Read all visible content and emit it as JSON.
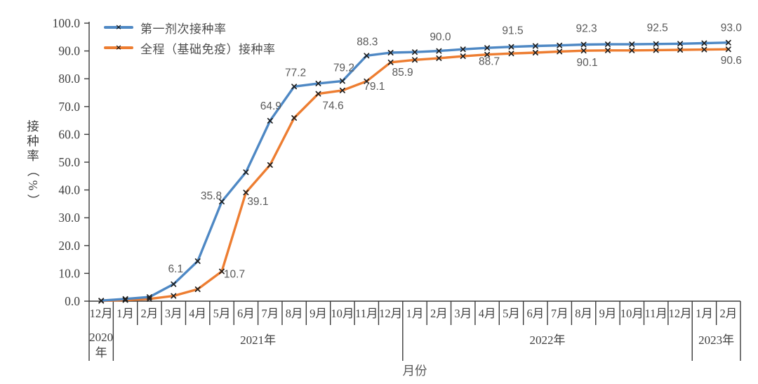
{
  "colors": {
    "series1": "#4e88c4",
    "series2": "#ed7d31",
    "marker": "#1f1f1f",
    "label_text": "#595959",
    "axis_text": "#404040",
    "axis_line": "#3a3a3a"
  },
  "chart_data": {
    "type": "line",
    "title": "",
    "xlabel": "月份",
    "ylabel": "接种率（%）",
    "ylim": [
      0,
      100
    ],
    "yticks": [
      "0.0",
      "10.0",
      "20.0",
      "30.0",
      "40.0",
      "50.0",
      "60.0",
      "70.0",
      "80.0",
      "90.0",
      "100.0"
    ],
    "grid": false,
    "legend_position": "top-left",
    "categories": [
      "12月",
      "1月",
      "2月",
      "3月",
      "4月",
      "5月",
      "6月",
      "7月",
      "8月",
      "9月",
      "10月",
      "11月",
      "12月",
      "1月",
      "2月",
      "3月",
      "4月",
      "5月",
      "6月",
      "7月",
      "8月",
      "9月",
      "10月",
      "11月",
      "12月",
      "1月",
      "2月"
    ],
    "year_groups": [
      {
        "label": "2020年",
        "label_lines": [
          "2020",
          "年"
        ],
        "start": 0,
        "end": 0
      },
      {
        "label": "2021年",
        "label_lines": [
          "2021年"
        ],
        "start": 1,
        "end": 12
      },
      {
        "label": "2022年",
        "label_lines": [
          "2022年"
        ],
        "start": 13,
        "end": 24
      },
      {
        "label": "2023年",
        "label_lines": [
          "2023年"
        ],
        "start": 25,
        "end": 26
      }
    ],
    "series": [
      {
        "name": "第一剂次接种率",
        "color_key": "series1",
        "values": [
          0.2,
          0.8,
          1.5,
          6.1,
          14.4,
          35.8,
          46.4,
          64.9,
          77.2,
          78.3,
          79.2,
          88.3,
          89.4,
          89.6,
          90.0,
          90.6,
          91.1,
          91.5,
          91.8,
          92.0,
          92.3,
          92.4,
          92.4,
          92.5,
          92.6,
          92.8,
          93.0
        ],
        "labels": [
          {
            "i": 3,
            "text": "6.1",
            "dx": 3,
            "dy": -17
          },
          {
            "i": 5,
            "text": "35.8",
            "dx": -15,
            "dy": -3
          },
          {
            "i": 7,
            "text": "64.9",
            "dx": 1,
            "dy": -16
          },
          {
            "i": 8,
            "text": "77.2",
            "dx": 2,
            "dy": -15
          },
          {
            "i": 10,
            "text": "79.2",
            "dx": 2,
            "dy": -14
          },
          {
            "i": 11,
            "text": "88.3",
            "dx": 1,
            "dy": -15
          },
          {
            "i": 14,
            "text": "90.0",
            "dx": 2,
            "dy": -15
          },
          {
            "i": 17,
            "text": "91.5",
            "dx": 2,
            "dy": -18
          },
          {
            "i": 20,
            "text": "92.3",
            "dx": 4,
            "dy": -18
          },
          {
            "i": 23,
            "text": "92.5",
            "dx": 2,
            "dy": -18
          },
          {
            "i": 26,
            "text": "93.0",
            "dx": 4,
            "dy": -16
          }
        ]
      },
      {
        "name": "全程（基础免疫）接种率",
        "color_key": "series2",
        "values": [
          0.1,
          0.4,
          0.8,
          1.9,
          4.3,
          10.7,
          39.1,
          49.0,
          65.9,
          74.6,
          75.8,
          79.1,
          85.9,
          86.8,
          87.4,
          88.1,
          88.7,
          89.1,
          89.4,
          89.8,
          90.1,
          90.2,
          90.2,
          90.3,
          90.4,
          90.5,
          90.6
        ],
        "labels": [
          {
            "i": 5,
            "text": "10.7",
            "dx": 18,
            "dy": 9
          },
          {
            "i": 6,
            "text": "39.1",
            "dx": 17,
            "dy": 18
          },
          {
            "i": 9,
            "text": "74.6",
            "dx": 21,
            "dy": 22
          },
          {
            "i": 11,
            "text": "79.1",
            "dx": 11,
            "dy": 12
          },
          {
            "i": 12,
            "text": "85.9",
            "dx": 17,
            "dy": 19
          },
          {
            "i": 16,
            "text": "88.7",
            "dx": 3,
            "dy": 15
          },
          {
            "i": 20,
            "text": "90.1",
            "dx": 5,
            "dy": 22
          },
          {
            "i": 26,
            "text": "90.6",
            "dx": 4,
            "dy": 21
          }
        ]
      }
    ]
  }
}
